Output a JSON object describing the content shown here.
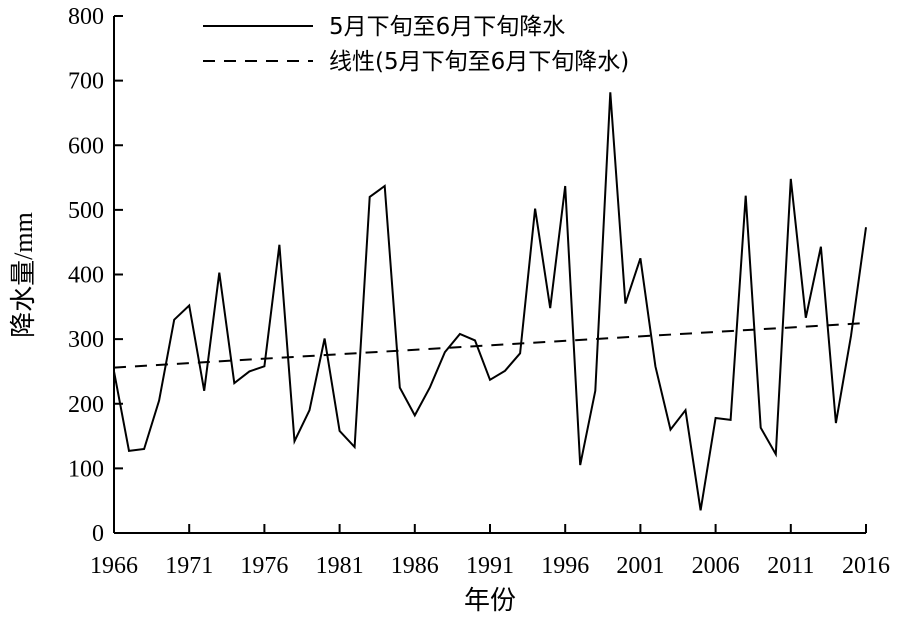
{
  "chart_data": {
    "type": "line",
    "xlabel": "年份",
    "ylabel": "降水量/mm",
    "xlim": [
      1966,
      2016
    ],
    "ylim": [
      0,
      800
    ],
    "x_ticks": [
      1966,
      1971,
      1976,
      1981,
      1986,
      1991,
      1996,
      2001,
      2006,
      2011,
      2016
    ],
    "y_ticks": [
      0,
      100,
      200,
      300,
      400,
      500,
      600,
      700,
      800
    ],
    "grid": false,
    "legend_position": "top-center",
    "series": [
      {
        "name": "5月下旬至6月下旬降水",
        "style": "solid",
        "color": "#000000",
        "x": [
          1966,
          1967,
          1968,
          1969,
          1970,
          1971,
          1972,
          1973,
          1974,
          1975,
          1976,
          1977,
          1978,
          1979,
          1980,
          1981,
          1982,
          1983,
          1984,
          1985,
          1986,
          1987,
          1988,
          1989,
          1990,
          1991,
          1992,
          1993,
          1994,
          1995,
          1996,
          1997,
          1998,
          1999,
          2000,
          2001,
          2002,
          2003,
          2004,
          2005,
          2006,
          2007,
          2008,
          2009,
          2010,
          2011,
          2012,
          2013,
          2014,
          2015,
          2016
        ],
        "values": [
          250,
          127,
          130,
          205,
          330,
          352,
          220,
          403,
          232,
          250,
          258,
          446,
          142,
          190,
          301,
          158,
          133,
          520,
          537,
          225,
          182,
          225,
          280,
          308,
          298,
          237,
          251,
          278,
          502,
          348,
          537,
          105,
          220,
          682,
          355,
          425,
          258,
          160,
          190,
          35,
          178,
          175,
          522,
          163,
          122,
          548,
          333,
          443,
          170,
          305,
          473
        ]
      },
      {
        "name": "线性(5月下旬至6月下旬降水)",
        "style": "dashed",
        "color": "#000000",
        "x": [
          1966,
          2016
        ],
        "values": [
          256,
          325
        ]
      }
    ]
  }
}
